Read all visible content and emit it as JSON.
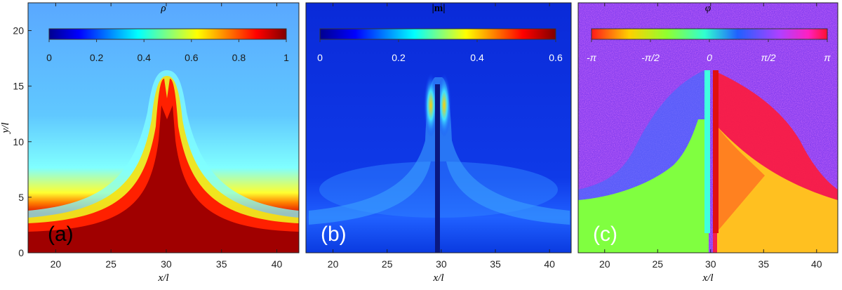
{
  "chart_data": [
    {
      "type": "heatmap",
      "panel": "(a)",
      "title": "ρ",
      "xlabel": "x/l",
      "ylabel": "y/l",
      "xlim": [
        17.5,
        42
      ],
      "ylim": [
        0,
        22.5
      ],
      "xticks": [
        20,
        25,
        30,
        35,
        40
      ],
      "yticks": [
        0,
        5,
        10,
        15,
        20
      ],
      "colorbar": {
        "colormap": "jet",
        "range": [
          0,
          1
        ],
        "ticks": [
          {
            "v": 0,
            "label": "0"
          },
          {
            "v": 0.2,
            "label": "0.2"
          },
          {
            "v": 0.4,
            "label": "0.4"
          },
          {
            "v": 0.6,
            "label": "0.6"
          },
          {
            "v": 0.8,
            "label": "0.8"
          },
          {
            "v": 1,
            "label": "1"
          }
        ]
      },
      "description_values": {
        "background_upper": 0.38,
        "bottom_layer": 1.0,
        "jet_peak_y": 16.5
      }
    },
    {
      "type": "heatmap",
      "panel": "(b)",
      "title": "|m|",
      "xlabel": "x/l",
      "xlim": [
        17.5,
        42
      ],
      "ylim": [
        0,
        22.5
      ],
      "xticks": [
        20,
        25,
        30,
        35,
        40
      ],
      "colorbar": {
        "colormap": "jet",
        "range": [
          0,
          0.6
        ],
        "ticks": [
          {
            "v": 0,
            "label": "0"
          },
          {
            "v": 0.2,
            "label": "0.2"
          },
          {
            "v": 0.4,
            "label": "0.4"
          },
          {
            "v": 0.6,
            "label": "0.6"
          }
        ]
      }
    },
    {
      "type": "heatmap",
      "panel": "(c)",
      "title": "φ",
      "xlabel": "x/l",
      "xlim": [
        17.5,
        42
      ],
      "ylim": [
        0,
        22.5
      ],
      "xticks": [
        20,
        25,
        30,
        35,
        40
      ],
      "colorbar": {
        "colormap": "hsv",
        "range": [
          -3.1416,
          3.1416
        ],
        "ticks": [
          {
            "v": -3.1416,
            "label": "-π"
          },
          {
            "v": -1.5708,
            "label": "-π/2"
          },
          {
            "v": 0,
            "label": "0"
          },
          {
            "v": 1.5708,
            "label": "π/2"
          },
          {
            "v": 3.1416,
            "label": "π"
          }
        ]
      }
    }
  ]
}
